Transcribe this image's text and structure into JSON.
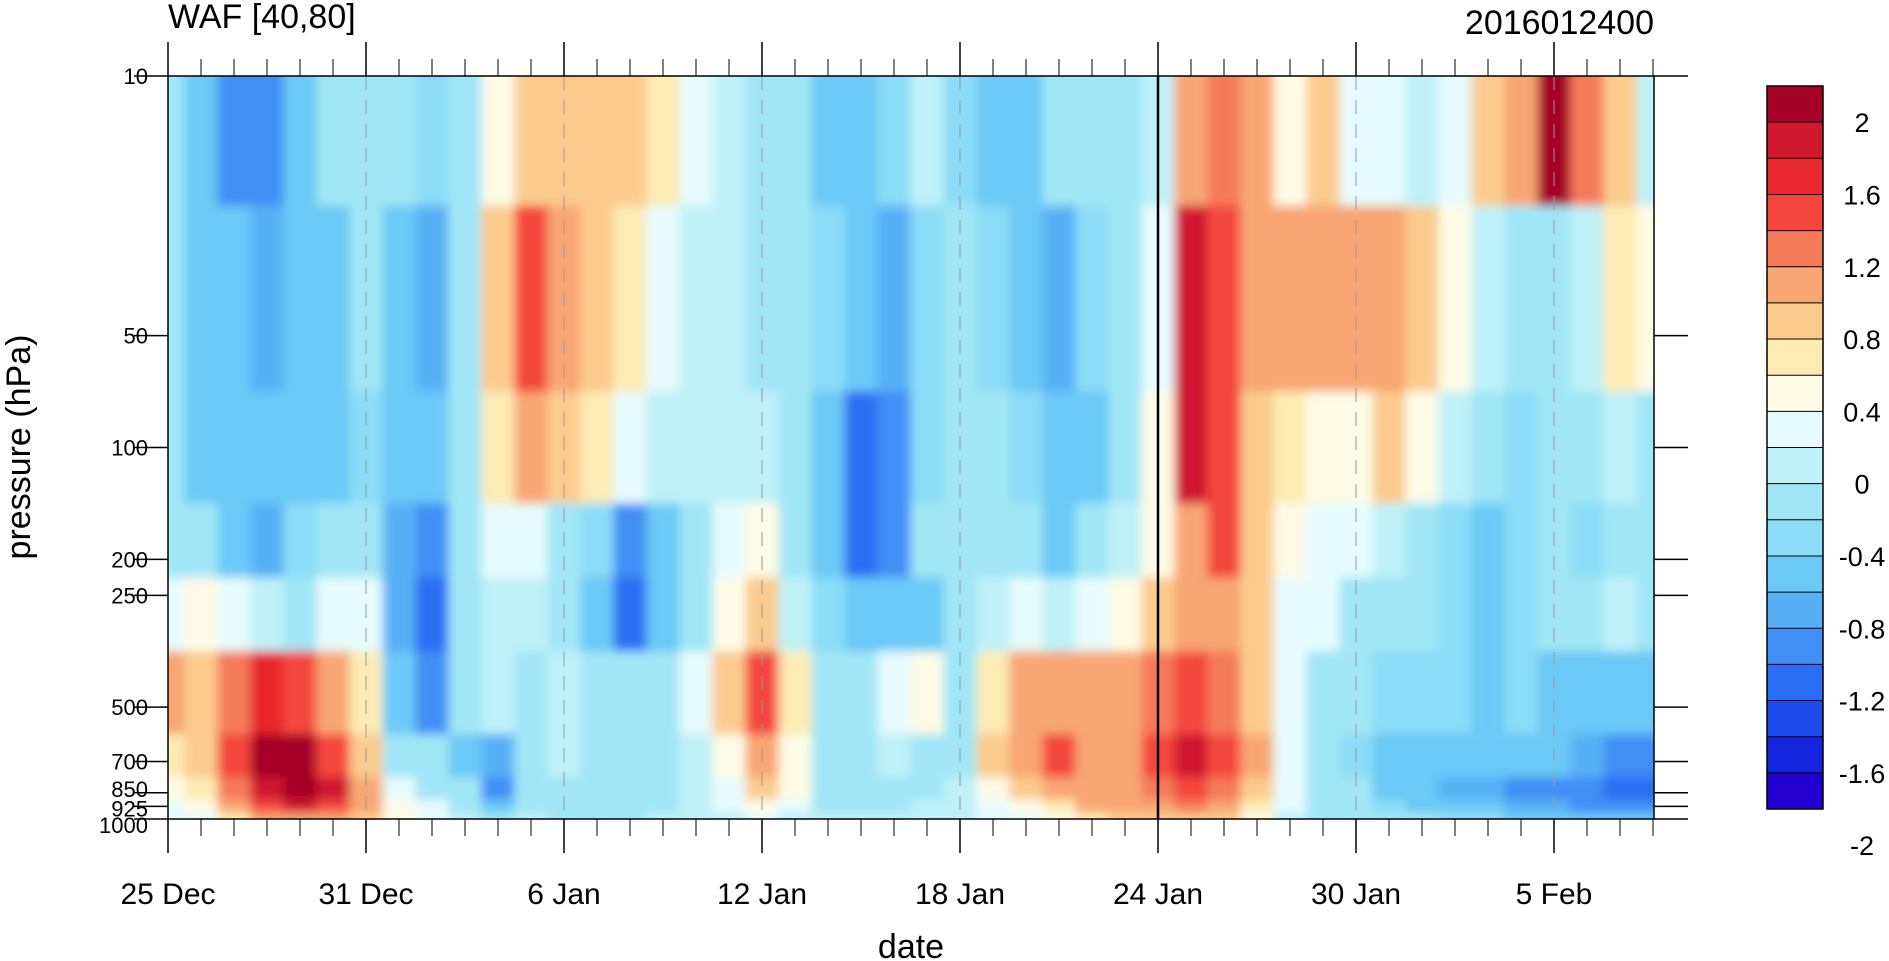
{
  "chart_data": {
    "type": "heatmap",
    "title": "WAF [40,80]",
    "subtitle": "2016012400",
    "xlabel": "date",
    "ylabel": "pressure (hPa)",
    "x_ticks": [
      "25 Dec",
      "31 Dec",
      "6 Jan",
      "12 Jan",
      "18 Jan",
      "24 Jan",
      "30 Jan",
      "5 Feb"
    ],
    "y_ticks": [
      "10",
      "50",
      "100",
      "200",
      "250",
      "500",
      "700",
      "850",
      "925",
      "1000"
    ],
    "y_scale": "log",
    "colorbar_labels": [
      "2",
      "1.6",
      "1.2",
      "0.8",
      "0.4",
      "0",
      "-0.4",
      "-0.8",
      "-1.2",
      "-1.6",
      "-2"
    ],
    "colors": [
      "#a50026",
      "#d01830",
      "#e8282f",
      "#f4463c",
      "#f57a5a",
      "#f8a673",
      "#fbcb8e",
      "#fdebb4",
      "#fefbe6",
      "#e6fbfd",
      "#bff1f8",
      "#a0e6f6",
      "#8cdcf7",
      "#6bc9f6",
      "#57b0f5",
      "#3f8ff5",
      "#2b6ef3",
      "#1e4bec",
      "#1525dd",
      "#2300d0"
    ],
    "x": [
      "25 Dec",
      "26 Dec",
      "27 Dec",
      "28 Dec",
      "29 Dec",
      "30 Dec",
      "31 Dec",
      "1 Jan",
      "2 Jan",
      "3 Jan",
      "4 Jan",
      "5 Jan",
      "6 Jan",
      "7 Jan",
      "8 Jan",
      "9 Jan",
      "10 Jan",
      "11 Jan",
      "12 Jan",
      "13 Jan",
      "14 Jan",
      "15 Jan",
      "16 Jan",
      "17 Jan",
      "18 Jan",
      "19 Jan",
      "20 Jan",
      "21 Jan",
      "22 Jan",
      "23 Jan",
      "24 Jan",
      "25 Jan",
      "26 Jan",
      "27 Jan",
      "28 Jan",
      "29 Jan",
      "30 Jan",
      "31 Jan",
      "1 Feb",
      "2 Feb",
      "3 Feb",
      "4 Feb",
      "5 Feb",
      "6 Feb",
      "7 Feb",
      "8 Feb"
    ],
    "y_levels": [
      10,
      50,
      100,
      200,
      250,
      500,
      700,
      850,
      925,
      1000
    ],
    "values": [
      [
        -0.4,
        -0.6,
        -1.0,
        -1.1,
        -0.6,
        -0.4,
        -0.3,
        -0.4,
        -0.5,
        -0.2,
        0.4,
        0.6,
        0.7,
        0.7,
        0.6,
        0.5,
        0.1,
        -0.1,
        -0.3,
        -0.4,
        -0.6,
        -0.6,
        -0.5,
        -0.1,
        -0.5,
        -0.8,
        -0.6,
        -0.4,
        -0.4,
        -0.3,
        -0.1,
        0.8,
        1.2,
        1.0,
        0.3,
        0.6,
        0.2,
        0.1,
        -0.1,
        0.2,
        0.7,
        1.0,
        1.9,
        1.2,
        0.6,
        0.0
      ],
      [
        -0.4,
        -0.6,
        -0.8,
        -0.9,
        -0.8,
        -0.7,
        -0.4,
        -0.8,
        -0.9,
        -0.4,
        0.6,
        1.3,
        0.9,
        0.7,
        0.5,
        0.2,
        0.0,
        0.0,
        -0.2,
        -0.4,
        -0.5,
        -0.7,
        -0.9,
        -0.5,
        -0.4,
        -0.5,
        -0.6,
        -0.9,
        -0.5,
        -0.2,
        0.2,
        1.6,
        1.3,
        0.9,
        0.8,
        0.9,
        0.9,
        1.0,
        0.7,
        0.3,
        -0.1,
        -0.3,
        -0.2,
        0.0,
        0.5,
        0.4
      ],
      [
        -0.4,
        -0.6,
        -0.7,
        -0.8,
        -0.8,
        -0.6,
        -0.5,
        -0.8,
        -0.8,
        -0.3,
        0.5,
        0.8,
        0.7,
        0.5,
        0.1,
        -0.1,
        0.0,
        0.0,
        0.0,
        -0.3,
        -0.7,
        -1.2,
        -1.1,
        -0.5,
        -0.4,
        -0.4,
        -0.5,
        -0.7,
        -0.6,
        -0.2,
        0.3,
        1.7,
        1.4,
        0.6,
        0.5,
        0.4,
        0.4,
        0.6,
        0.4,
        0.0,
        -0.2,
        -0.5,
        -0.4,
        -0.3,
        0.0,
        -0.2
      ],
      [
        -0.3,
        -0.4,
        -0.6,
        -0.9,
        -0.5,
        -0.3,
        -0.2,
        -0.9,
        -1.1,
        -0.3,
        0.1,
        0.2,
        -0.2,
        -0.5,
        -1.0,
        -0.7,
        -0.3,
        0.2,
        0.3,
        -0.3,
        -0.7,
        -1.3,
        -1.0,
        -0.4,
        -0.3,
        -0.3,
        -0.4,
        -0.6,
        -0.4,
        0.0,
        0.4,
        1.0,
        1.3,
        0.6,
        0.3,
        0.2,
        0.1,
        0.0,
        -0.3,
        -0.5,
        -0.6,
        -0.5,
        -0.3,
        -0.5,
        -0.4,
        -0.4
      ],
      [
        0.1,
        0.3,
        0.2,
        -0.1,
        -0.2,
        0.2,
        0.2,
        -0.9,
        -1.3,
        -0.3,
        -0.1,
        0.0,
        -0.2,
        -0.8,
        -1.2,
        -0.8,
        -0.3,
        0.4,
        0.6,
        -0.1,
        -0.5,
        -0.6,
        -0.6,
        -0.8,
        -0.4,
        0.0,
        0.1,
        0.0,
        0.2,
        0.3,
        0.7,
        0.8,
        1.0,
        0.6,
        0.2,
        0.1,
        -0.2,
        -0.4,
        -0.4,
        -0.5,
        -0.6,
        -0.5,
        -0.4,
        -0.4,
        -0.1,
        -0.3
      ],
      [
        0.8,
        0.7,
        1.2,
        1.5,
        1.4,
        1.0,
        0.5,
        -0.7,
        -1.1,
        -0.3,
        -0.1,
        -0.2,
        -0.1,
        -0.3,
        -0.4,
        -0.3,
        0.1,
        0.6,
        1.4,
        0.5,
        -0.2,
        -0.4,
        0.2,
        0.4,
        -0.3,
        0.5,
        0.9,
        0.9,
        0.8,
        0.9,
        1.2,
        1.4,
        1.1,
        0.7,
        0.1,
        -0.2,
        -0.4,
        -0.5,
        -0.5,
        -0.5,
        -0.6,
        -0.5,
        -0.6,
        -0.6,
        -0.7,
        -0.7
      ],
      [
        0.5,
        0.6,
        1.4,
        1.8,
        1.9,
        1.3,
        0.6,
        -0.2,
        -0.4,
        -0.6,
        -0.9,
        -0.3,
        -0.1,
        -0.2,
        -0.2,
        -0.2,
        0.0,
        0.4,
        1.0,
        0.4,
        -0.3,
        -0.4,
        0.0,
        -0.3,
        -0.2,
        0.6,
        1.0,
        1.4,
        1.0,
        0.9,
        1.3,
        1.7,
        1.3,
        0.8,
        0.2,
        -0.3,
        -0.5,
        -0.6,
        -0.6,
        -0.7,
        -0.8,
        -0.8,
        -0.8,
        -0.9,
        -1.1,
        -1.1
      ],
      [
        0.4,
        0.5,
        1.2,
        1.6,
        1.9,
        1.6,
        0.8,
        0.2,
        -0.2,
        -0.4,
        -1.0,
        -0.3,
        -0.3,
        -0.4,
        -0.4,
        -0.2,
        0.0,
        0.2,
        0.6,
        0.3,
        -0.2,
        -0.3,
        -0.2,
        -0.2,
        0.0,
        0.3,
        0.6,
        0.8,
        1.0,
        1.0,
        1.2,
        1.4,
        1.1,
        0.7,
        0.2,
        -0.3,
        -0.4,
        -0.6,
        -0.7,
        -0.9,
        -0.9,
        -1.0,
        -1.0,
        -1.1,
        -1.2,
        -1.3
      ],
      [
        0.2,
        0.4,
        0.9,
        1.3,
        1.6,
        1.4,
        0.9,
        0.4,
        0.1,
        -0.2,
        -0.6,
        -0.2,
        -0.3,
        -0.4,
        -0.3,
        -0.2,
        -0.1,
        0.1,
        0.3,
        0.1,
        -0.2,
        -0.3,
        -0.2,
        -0.1,
        0.0,
        0.1,
        0.3,
        0.5,
        0.8,
        0.9,
        1.0,
        1.1,
        0.9,
        0.5,
        0.1,
        -0.3,
        -0.4,
        -0.5,
        -0.6,
        -0.7,
        -0.8,
        -0.9,
        -0.9,
        -1.0,
        -1.0,
        -1.1
      ],
      [
        0.1,
        0.2,
        0.5,
        0.8,
        1.0,
        0.9,
        0.6,
        0.3,
        0.1,
        0.0,
        -0.2,
        -0.1,
        -0.2,
        -0.2,
        -0.2,
        -0.1,
        0.0,
        0.0,
        0.1,
        0.0,
        -0.1,
        -0.1,
        -0.1,
        0.0,
        0.0,
        0.1,
        0.2,
        0.3,
        0.5,
        0.6,
        0.7,
        0.7,
        0.6,
        0.3,
        0.0,
        -0.2,
        -0.3,
        -0.3,
        -0.4,
        -0.5,
        -0.5,
        -0.6,
        -0.6,
        -0.6,
        -0.7,
        -0.7
      ]
    ]
  }
}
